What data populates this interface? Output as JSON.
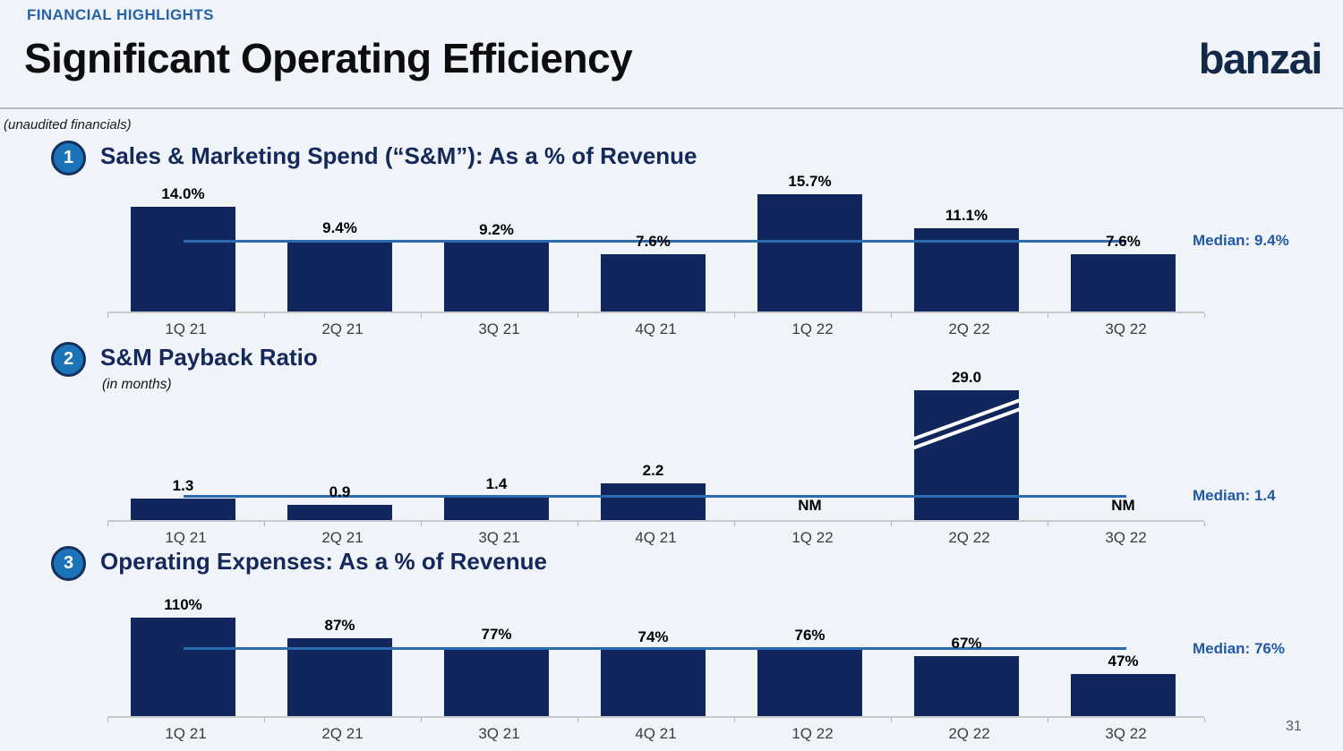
{
  "slide": {
    "eyebrow": "FINANCIAL HIGHLIGHTS",
    "title": "Significant Operating Efficiency",
    "logo_text": "banzai",
    "note": "(unaudited financials)",
    "page_number": "31"
  },
  "colors": {
    "background": "#f0f4f8",
    "bar_navy": "#12265e",
    "median_line_blue": "#2b6cb0",
    "median_text_blue": "#2159a5",
    "heading_navy": "#15285a",
    "eyebrow_blue": "#2563a8",
    "badge_fill": "#1b74b8",
    "badge_ring": "#142f5e",
    "axis_gray": "#c9c9c9"
  },
  "chart_data": [
    {
      "type": "bar",
      "number": "1",
      "title": "Sales & Marketing Spend (“S&M”): As a % of Revenue",
      "categories": [
        "1Q 21",
        "2Q 21",
        "3Q 21",
        "4Q 21",
        "1Q 22",
        "2Q 22",
        "3Q 22"
      ],
      "values": [
        14.0,
        9.4,
        9.2,
        7.6,
        15.7,
        11.1,
        7.6
      ],
      "labels": [
        "14.0%",
        "9.4%",
        "9.2%",
        "7.6%",
        "15.7%",
        "11.1%",
        "7.6%"
      ],
      "median": 9.4,
      "median_label": "Median: 9.4%",
      "ylim": [
        0,
        17.7
      ],
      "grid": false,
      "legend": "none"
    },
    {
      "type": "bar",
      "number": "2",
      "title": "S&M Payback Ratio",
      "subtitle": "(in months)",
      "categories": [
        "1Q 21",
        "2Q 21",
        "3Q 21",
        "4Q 21",
        "1Q 22",
        "2Q 22",
        "3Q 22"
      ],
      "values": [
        1.3,
        0.9,
        1.4,
        2.2,
        null,
        29.0,
        null
      ],
      "labels": [
        "1.3",
        "0.9",
        "1.4",
        "2.2",
        "NM",
        "29.0",
        "NM"
      ],
      "median": 1.4,
      "median_label": "Median: 1.4",
      "broken_bar_index": 5,
      "grid": false,
      "legend": "none"
    },
    {
      "type": "bar",
      "number": "3",
      "title": "Operating Expenses: As a % of Revenue",
      "categories": [
        "1Q 21",
        "2Q 21",
        "3Q 21",
        "4Q 21",
        "1Q 22",
        "2Q 22",
        "3Q 22"
      ],
      "values": [
        110,
        87,
        77,
        74,
        76,
        67,
        47
      ],
      "labels": [
        "110%",
        "87%",
        "77%",
        "74%",
        "76%",
        "67%",
        "47%"
      ],
      "median": 76,
      "median_label": "Median: 76%",
      "ylim": [
        0,
        115
      ],
      "grid": false,
      "legend": "none"
    }
  ]
}
